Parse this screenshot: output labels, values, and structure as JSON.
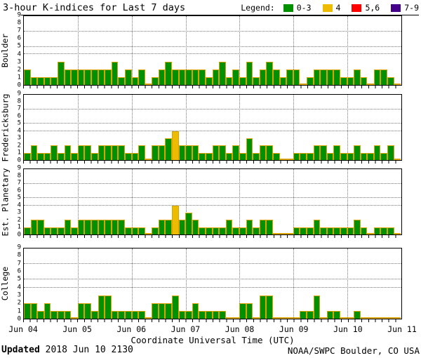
{
  "title": "3-hour K-indices for Last 7 days",
  "legend": {
    "label": "Legend:",
    "items": [
      {
        "label": "0-3",
        "color": "#009000"
      },
      {
        "label": "4",
        "color": "#edbc00"
      },
      {
        "label": "5,6",
        "color": "#ff0000"
      },
      {
        "label": "7-9",
        "color": "#440088"
      }
    ]
  },
  "xlabel": "Coordinate Universal Time (UTC)",
  "x_ticks": [
    "Jun 04",
    "Jun 05",
    "Jun 06",
    "Jun 07",
    "Jun 08",
    "Jun 09",
    "Jun 10",
    "Jun 11"
  ],
  "footer": {
    "updated_label": "Updated",
    "updated_value": "2018 Jun 10 2130",
    "credit": "NOAA/SWPC Boulder, CO USA"
  },
  "chart_data": {
    "type": "bar",
    "title": "3-hour K-indices for Last 7 days",
    "interval_hours": 3,
    "bars_per_day": 8,
    "x_range": [
      "Jun 04",
      "Jun 11"
    ],
    "ylim": [
      0,
      9
    ],
    "y_ticks": [
      0,
      1,
      2,
      3,
      4,
      5,
      6,
      7,
      8,
      9
    ],
    "y_gridlines": [
      4,
      5,
      7
    ],
    "grid": "dotted day boundaries vertical; dotted horizontal at K=4,5,7",
    "legend_position": "top-right",
    "color_scale": [
      {
        "range": "0-3",
        "color": "#009000"
      },
      {
        "range": "4",
        "color": "#edbc00"
      },
      {
        "range": "5,6",
        "color": "#ff0000"
      },
      {
        "range": "7-9",
        "color": "#440088"
      }
    ],
    "panels": [
      {
        "station": "Boulder",
        "k_values": [
          2,
          1,
          1,
          1,
          1,
          3,
          2,
          2,
          2,
          2,
          2,
          2,
          2,
          3,
          1,
          2,
          1,
          2,
          0,
          1,
          2,
          3,
          2,
          2,
          2,
          2,
          2,
          1,
          2,
          3,
          1,
          2,
          1,
          3,
          1,
          2,
          3,
          2,
          1,
          2,
          2,
          0,
          1,
          2,
          2,
          2,
          2,
          1,
          1,
          2,
          1,
          0,
          2,
          2,
          1,
          0
        ]
      },
      {
        "station": "Fredericksburg",
        "k_values": [
          1,
          2,
          1,
          1,
          2,
          1,
          2,
          1,
          2,
          2,
          1,
          2,
          2,
          2,
          2,
          1,
          1,
          2,
          0,
          2,
          2,
          3,
          4,
          2,
          2,
          2,
          1,
          1,
          2,
          2,
          1,
          2,
          1,
          3,
          1,
          2,
          2,
          1,
          0,
          0,
          1,
          1,
          1,
          2,
          2,
          1,
          2,
          1,
          1,
          2,
          1,
          1,
          2,
          1,
          2,
          0
        ]
      },
      {
        "station": "Est. Planetary",
        "k_values": [
          1,
          2,
          2,
          1,
          1,
          1,
          2,
          1,
          2,
          2,
          2,
          2,
          2,
          2,
          2,
          1,
          1,
          1,
          0,
          1,
          2,
          2,
          4,
          2,
          3,
          2,
          1,
          1,
          1,
          1,
          2,
          1,
          1,
          2,
          1,
          2,
          2,
          0,
          0,
          0,
          1,
          1,
          1,
          2,
          1,
          1,
          1,
          1,
          1,
          2,
          1,
          0,
          1,
          1,
          1,
          0
        ]
      },
      {
        "station": "College",
        "k_values": [
          2,
          2,
          1,
          2,
          1,
          1,
          1,
          0,
          2,
          2,
          1,
          3,
          3,
          1,
          1,
          1,
          1,
          1,
          0,
          2,
          2,
          2,
          3,
          1,
          1,
          2,
          1,
          1,
          1,
          1,
          0,
          0,
          2,
          2,
          0,
          3,
          3,
          0,
          0,
          0,
          0,
          1,
          1,
          3,
          0,
          1,
          1,
          0,
          0,
          1,
          0,
          0,
          0,
          0,
          0,
          0
        ]
      }
    ]
  }
}
